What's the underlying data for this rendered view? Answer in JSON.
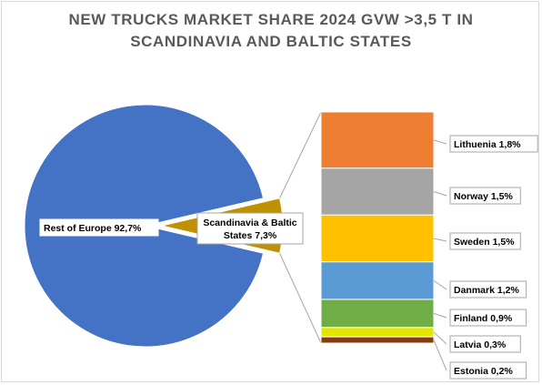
{
  "chart_data": {
    "type": "bar-of-pie",
    "title_line1": "NEW TRUCKS MARKET SHARE 2024 GVW >3,5 T IN",
    "title_line2": "SCANDINAVIA AND BALTIC STATES",
    "pie": [
      {
        "name": "Rest of Europe",
        "label": "Rest of Europe 92,7%",
        "value": 92.7,
        "color": "#4472c4"
      },
      {
        "name": "Scandinavia & Baltic States",
        "label_line1": "Scandinavia & Baltic",
        "label_line2": "States 7,3%",
        "value": 7.3,
        "color": "#bf9000"
      }
    ],
    "bar": [
      {
        "name": "Lithuenia",
        "label": "Lithuenia 1,8%",
        "value": 1.8,
        "color": "#ed7d31"
      },
      {
        "name": "Norway",
        "label": "Norway 1,5%",
        "value": 1.5,
        "color": "#a5a5a5"
      },
      {
        "name": "Sweden",
        "label": "Sweden 1,5%",
        "value": 1.5,
        "color": "#ffc000"
      },
      {
        "name": "Danmark",
        "label": "Danmark 1,2%",
        "value": 1.2,
        "color": "#5b9bd5"
      },
      {
        "name": "Finland",
        "label": "Finland 0,9%",
        "value": 0.9,
        "color": "#70ad47"
      },
      {
        "name": "Latvia",
        "label": "Latvia 0,3%",
        "value": 0.3,
        "color": "#e5e500"
      },
      {
        "name": "Estonia",
        "label": "Estonia 0,2%",
        "value": 0.2,
        "color": "#843c0c"
      }
    ]
  }
}
